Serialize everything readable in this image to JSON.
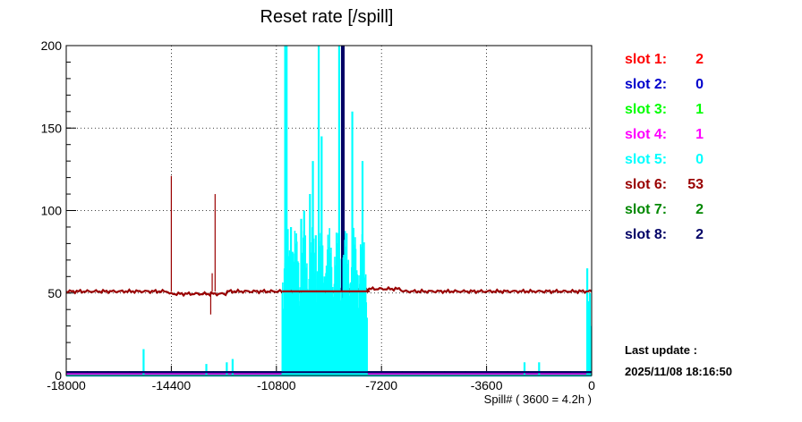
{
  "chart_data": {
    "type": "bar",
    "title": "Reset rate [/spill]",
    "xlabel": "Spill# ( 3600 = 4.2h )",
    "ylabel": "",
    "xlim": [
      -18000,
      0
    ],
    "ylim": [
      0,
      200
    ],
    "x_ticks": [
      -18000,
      -14400,
      -10800,
      -7200,
      -3600,
      0
    ],
    "y_ticks": [
      0,
      50,
      100,
      150,
      200
    ],
    "grid": true,
    "legend_position": "right",
    "series": [
      {
        "name": "slot 1:",
        "value": "2",
        "color": "#ff0000",
        "baseline": 2
      },
      {
        "name": "slot 2:",
        "value": "0",
        "color": "#0000cc",
        "baseline": 0
      },
      {
        "name": "slot 3:",
        "value": "1",
        "color": "#00ff00",
        "baseline": 1
      },
      {
        "name": "slot 4:",
        "value": "1",
        "color": "#ff00ff",
        "baseline": 1
      },
      {
        "name": "slot 5:",
        "value": "0",
        "color": "#00ffff",
        "baseline": 0,
        "spikes": [
          [
            -15350,
            16
          ],
          [
            -13200,
            7
          ],
          [
            -12500,
            8
          ],
          [
            -12300,
            10
          ],
          [
            -10500,
            200
          ],
          [
            -10450,
            200
          ],
          [
            -10400,
            60
          ],
          [
            -10300,
            90
          ],
          [
            -10250,
            75
          ],
          [
            -10150,
            55
          ],
          [
            -10050,
            45
          ],
          [
            -9950,
            95
          ],
          [
            -9850,
            100
          ],
          [
            -9750,
            50
          ],
          [
            -9650,
            110
          ],
          [
            -9550,
            130
          ],
          [
            -9450,
            85
          ],
          [
            -9350,
            200
          ],
          [
            -9250,
            145
          ],
          [
            -9150,
            60
          ],
          [
            -9050,
            40
          ],
          [
            -8950,
            55
          ],
          [
            -8850,
            30
          ],
          [
            -8750,
            25
          ],
          [
            -8650,
            200
          ],
          [
            -8550,
            120
          ],
          [
            -8400,
            40
          ],
          [
            -8200,
            160
          ],
          [
            -8100,
            70
          ],
          [
            -7950,
            50
          ],
          [
            -7850,
            130
          ],
          [
            -7800,
            60
          ],
          [
            -7700,
            35
          ],
          [
            -2300,
            8
          ],
          [
            -1800,
            8
          ],
          [
            -150,
            65
          ],
          [
            -100,
            45
          ],
          [
            -60,
            50
          ],
          [
            -20,
            30
          ]
        ]
      },
      {
        "name": "slot 6:",
        "value": "53",
        "color": "#990000",
        "baseline": 51,
        "spikes": [
          [
            -14400,
            121
          ],
          [
            -13050,
            37
          ],
          [
            -13000,
            62
          ],
          [
            -12900,
            110
          ],
          [
            -3050,
            50
          ]
        ]
      },
      {
        "name": "slot 7:",
        "value": "2",
        "color": "#008800",
        "baseline": 2
      },
      {
        "name": "slot 8:",
        "value": "2",
        "color": "#000066",
        "baseline": 2,
        "spikes": [
          [
            -8550,
            200
          ],
          [
            -8500,
            200
          ]
        ]
      }
    ]
  },
  "last_update_label": "Last update :",
  "last_update_time": "2025/11/08 18:16:50"
}
